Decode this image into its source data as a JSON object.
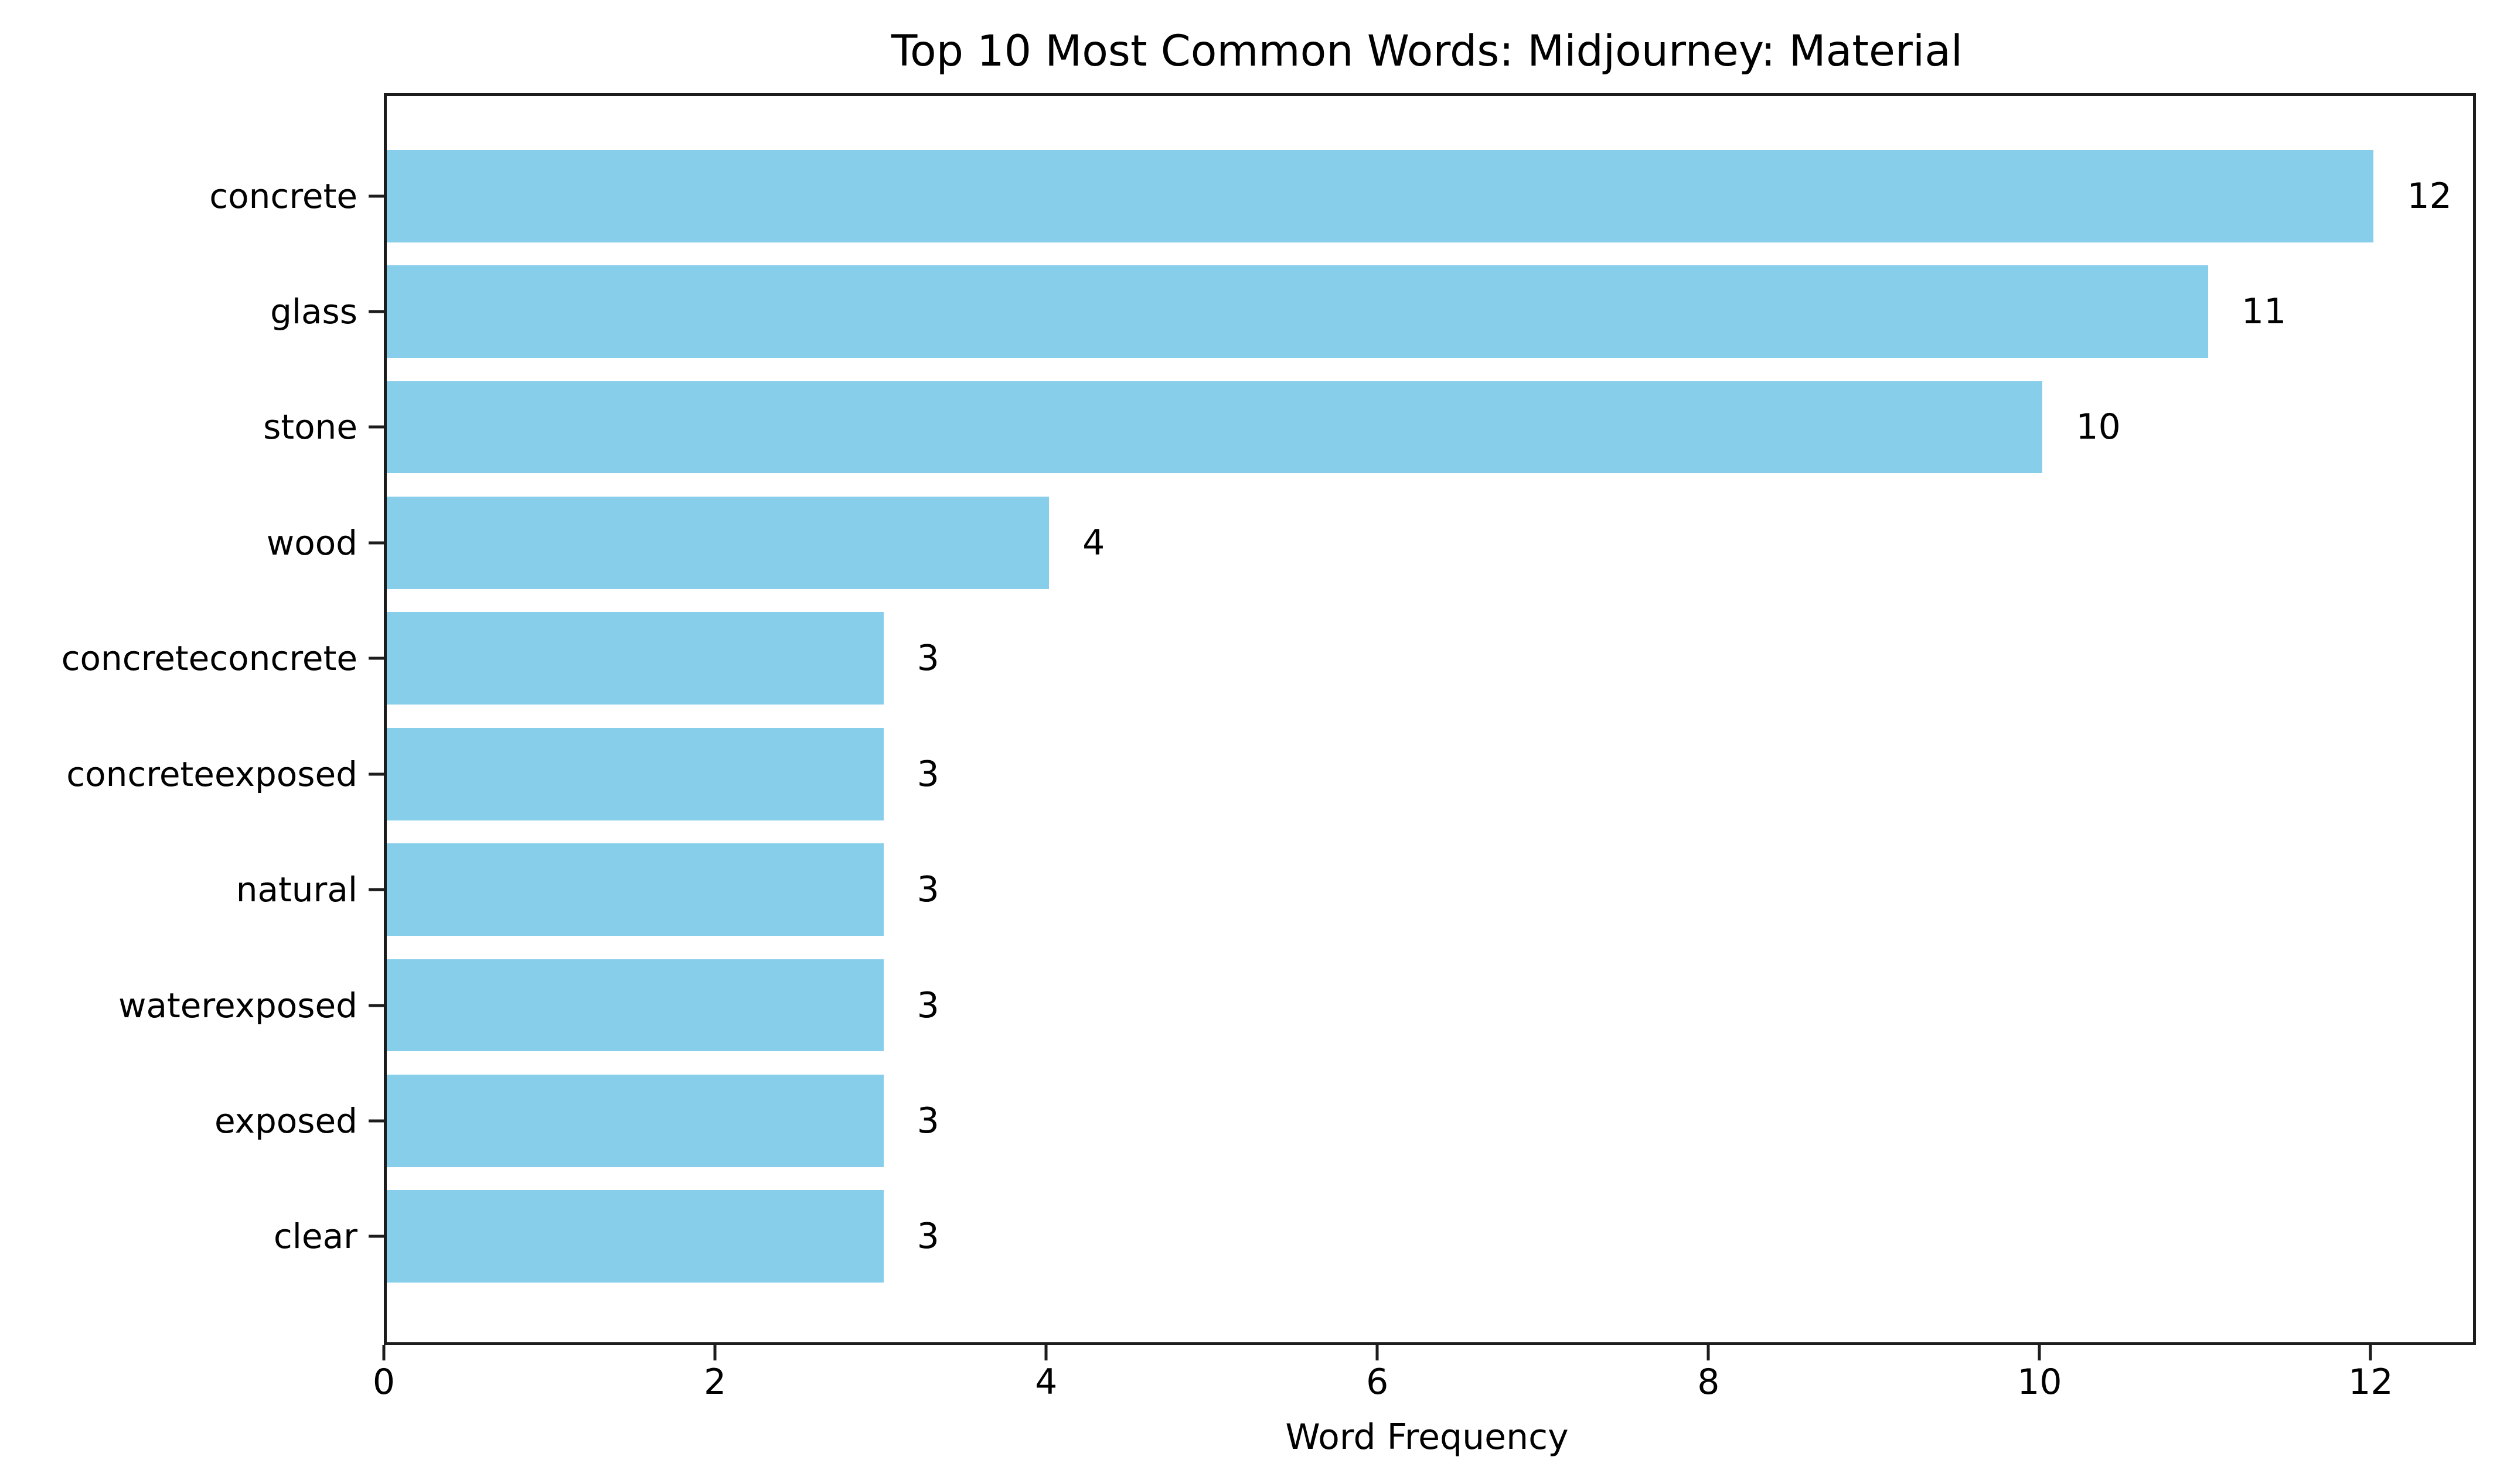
{
  "figure": {
    "background_color": "#ffffff",
    "text_color": "#000000",
    "spine_color": "#1c1c1c"
  },
  "chart_data": {
    "type": "bar",
    "orientation": "horizontal",
    "title": "Top 10 Most Common Words: Midjourney: Material",
    "xlabel": "Word Frequency",
    "ylabel": "",
    "categories": [
      "concrete",
      "glass",
      "stone",
      "wood",
      "concreteconcrete",
      "concreteexposed",
      "natural",
      "waterexposed",
      "exposed",
      "clear"
    ],
    "values": [
      12,
      11,
      10,
      4,
      3,
      3,
      3,
      3,
      3,
      3
    ],
    "value_labels": [
      "12",
      "11",
      "10",
      "4",
      "3",
      "3",
      "3",
      "3",
      "3",
      "3"
    ],
    "xticks": [
      0,
      2,
      4,
      6,
      8,
      10,
      12
    ],
    "xtick_labels": [
      "0",
      "2",
      "4",
      "6",
      "8",
      "10",
      "12"
    ],
    "xlim": [
      0,
      12.6
    ],
    "bar_color": "#87CEEB",
    "bar_height_fraction": 0.8,
    "grid": false,
    "legend_position": null,
    "value_labels_shown": true
  }
}
